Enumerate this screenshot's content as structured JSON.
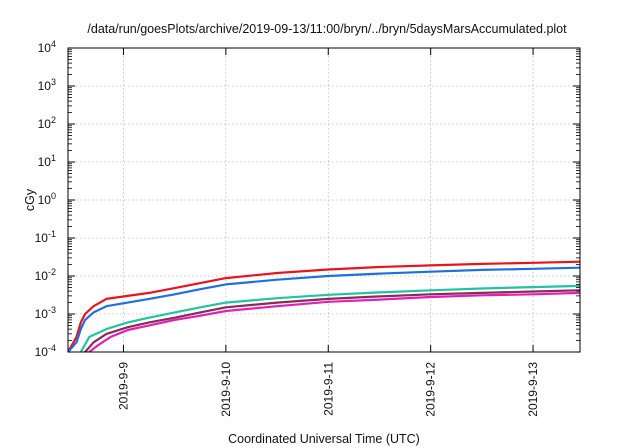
{
  "chart_data": {
    "type": "line",
    "title": "/data/run/goesPlots/archive/2019-09-13/11:00/bryn/../bryn/5daysMarsAccumulated.plot",
    "xlabel": "Coordinated Universal Time (UTC)",
    "ylabel": "cGy",
    "x_scale": "time",
    "xlim": [
      "2019-09-08 11:00",
      "2019-09-13 11:00"
    ],
    "x_ticks": [
      "2019-9-9",
      "2019-9-10",
      "2019-9-11",
      "2019-9-12",
      "2019-9-13"
    ],
    "y_scale": "log",
    "ylim": [
      0.0001,
      10000
    ],
    "y_ticks": [
      {
        "value": 0.0001,
        "base": "10",
        "exp": "-4"
      },
      {
        "value": 0.001,
        "base": "10",
        "exp": "-3"
      },
      {
        "value": 0.01,
        "base": "10",
        "exp": "-2"
      },
      {
        "value": 0.1,
        "base": "10",
        "exp": "-1"
      },
      {
        "value": 1,
        "base": "10",
        "exp": "0"
      },
      {
        "value": 10,
        "base": "10",
        "exp": "1"
      },
      {
        "value": 100,
        "base": "10",
        "exp": "2"
      },
      {
        "value": 1000,
        "base": "10",
        "exp": "3"
      },
      {
        "value": 10000,
        "base": "10",
        "exp": "4"
      }
    ],
    "grid": true,
    "legend": "none",
    "series": [
      {
        "color": "#e8141c",
        "x": [
          "2019-09-08 11:00",
          "2019-09-08 13:00",
          "2019-09-08 14:00",
          "2019-09-08 15:00",
          "2019-09-08 17:00",
          "2019-09-08 20:00",
          "2019-09-09 01:00",
          "2019-09-09 06:00",
          "2019-09-09 12:00",
          "2019-09-09 18:00",
          "2019-09-10 00:00",
          "2019-09-10 12:00",
          "2019-09-11 00:00",
          "2019-09-11 12:00",
          "2019-09-12 00:00",
          "2019-09-12 12:00",
          "2019-09-13 00:00",
          "2019-09-13 11:00"
        ],
        "y": [
          0.0001,
          0.00025,
          0.0006,
          0.001,
          0.0016,
          0.0025,
          0.003,
          0.0036,
          0.0048,
          0.0065,
          0.0088,
          0.012,
          0.0148,
          0.0172,
          0.019,
          0.0208,
          0.0222,
          0.0238
        ]
      },
      {
        "color": "#1f6fe0",
        "x": [
          "2019-09-08 11:00",
          "2019-09-08 13:00",
          "2019-09-08 14:00",
          "2019-09-08 15:00",
          "2019-09-08 17:00",
          "2019-09-08 20:00",
          "2019-09-09 01:00",
          "2019-09-09 06:00",
          "2019-09-09 12:00",
          "2019-09-09 18:00",
          "2019-09-10 00:00",
          "2019-09-10 12:00",
          "2019-09-11 00:00",
          "2019-09-11 12:00",
          "2019-09-12 00:00",
          "2019-09-12 12:00",
          "2019-09-13 00:00",
          "2019-09-13 11:00"
        ],
        "y": [
          0.0001,
          0.00018,
          0.0004,
          0.0007,
          0.0011,
          0.0016,
          0.002,
          0.0025,
          0.0033,
          0.0045,
          0.006,
          0.008,
          0.01,
          0.0116,
          0.013,
          0.0145,
          0.0155,
          0.0165
        ]
      },
      {
        "color": "#20c4a0",
        "x": [
          "2019-09-08 14:00",
          "2019-09-08 16:00",
          "2019-09-08 20:00",
          "2019-09-09 01:00",
          "2019-09-09 06:00",
          "2019-09-09 12:00",
          "2019-09-09 18:00",
          "2019-09-10 00:00",
          "2019-09-10 12:00",
          "2019-09-11 00:00",
          "2019-09-11 12:00",
          "2019-09-12 00:00",
          "2019-09-12 12:00",
          "2019-09-13 00:00",
          "2019-09-13 11:00"
        ],
        "y": [
          0.0001,
          0.00025,
          0.0004,
          0.0006,
          0.0008,
          0.0011,
          0.0015,
          0.002,
          0.0026,
          0.0032,
          0.0037,
          0.0042,
          0.0047,
          0.0051,
          0.0055
        ]
      },
      {
        "color": "#8c2a55",
        "x": [
          "2019-09-08 15:00",
          "2019-09-08 17:00",
          "2019-09-08 20:00",
          "2019-09-09 01:00",
          "2019-09-09 06:00",
          "2019-09-09 12:00",
          "2019-09-09 18:00",
          "2019-09-10 00:00",
          "2019-09-10 12:00",
          "2019-09-11 00:00",
          "2019-09-11 12:00",
          "2019-09-12 00:00",
          "2019-09-12 12:00",
          "2019-09-13 00:00",
          "2019-09-13 11:00"
        ],
        "y": [
          0.0001,
          0.00018,
          0.0003,
          0.00045,
          0.0006,
          0.0008,
          0.0011,
          0.0015,
          0.002,
          0.0025,
          0.0029,
          0.0033,
          0.0036,
          0.0039,
          0.0042
        ]
      },
      {
        "color": "#e020b8",
        "x": [
          "2019-09-08 16:00",
          "2019-09-08 18:00",
          "2019-09-08 21:00",
          "2019-09-09 01:00",
          "2019-09-09 06:00",
          "2019-09-09 12:00",
          "2019-09-09 18:00",
          "2019-09-10 00:00",
          "2019-09-10 12:00",
          "2019-09-11 00:00",
          "2019-09-11 12:00",
          "2019-09-12 00:00",
          "2019-09-12 12:00",
          "2019-09-13 00:00",
          "2019-09-13 11:00"
        ],
        "y": [
          0.0001,
          0.00015,
          0.00025,
          0.00038,
          0.0005,
          0.0007,
          0.0009,
          0.0012,
          0.0016,
          0.0021,
          0.0024,
          0.0028,
          0.0031,
          0.0033,
          0.0036
        ]
      }
    ]
  }
}
